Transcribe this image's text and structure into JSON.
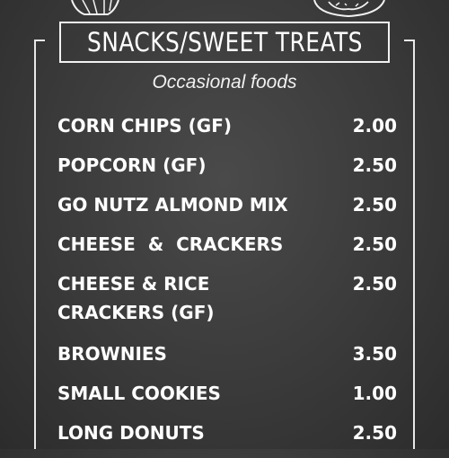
{
  "board": {
    "title": "SNACKS/SWEET TREATS",
    "subtitle": "Occasional foods"
  },
  "decorations": {
    "left_doodle": "basket-icon",
    "right_doodle": "donut-icon"
  },
  "menu": {
    "items": [
      {
        "name": "CORN CHIPS (GF)",
        "price": "2.00"
      },
      {
        "name": "POPCORN (GF)",
        "price": "2.50"
      },
      {
        "name": "GO NUTZ ALMOND MIX",
        "price": "2.50"
      },
      {
        "name": "CHEESE  &  CRACKERS",
        "price": "2.50"
      },
      {
        "name": "CHEESE & RICE\nCRACKERS (GF)",
        "price": "2.50"
      },
      {
        "name": "BROWNIES",
        "price": "3.50"
      },
      {
        "name": "SMALL COOKIES",
        "price": "1.00"
      },
      {
        "name": "LONG DONUTS",
        "price": "2.50"
      }
    ]
  }
}
